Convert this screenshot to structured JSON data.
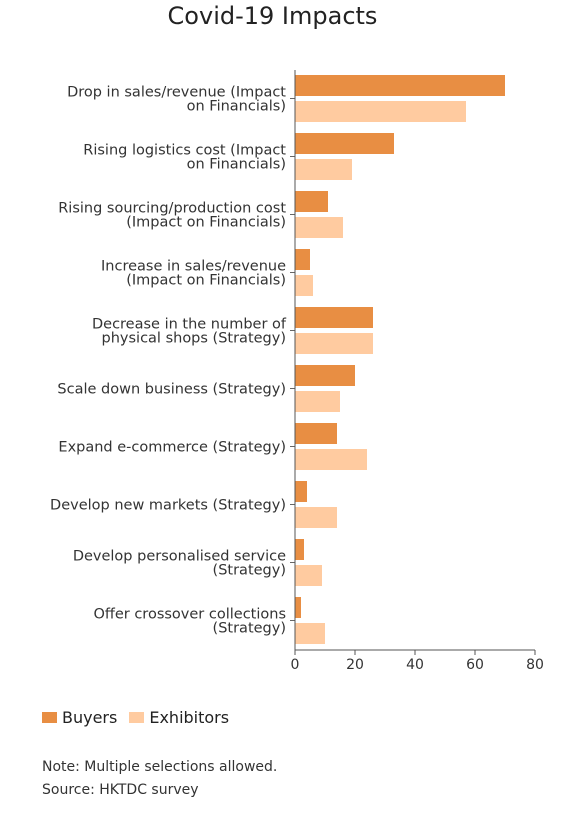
{
  "chart_data": {
    "type": "bar",
    "orientation": "horizontal",
    "title": "Covid-19 Impacts",
    "categories": [
      [
        "Drop in sales/revenue (Impact",
        "on Financials)"
      ],
      [
        "Rising logistics cost (Impact",
        "on Financials)"
      ],
      [
        "Rising sourcing/production cost",
        "(Impact on Financials)"
      ],
      [
        "Increase in sales/revenue",
        "(Impact on Financials)"
      ],
      [
        "Decrease in the number of",
        "physical shops (Strategy)"
      ],
      [
        "Scale down business (Strategy)"
      ],
      [
        "Expand e-commerce (Strategy)"
      ],
      [
        "Develop new markets (Strategy)"
      ],
      [
        "Develop personalised service",
        "(Strategy)"
      ],
      [
        "Offer crossover collections",
        "(Strategy)"
      ]
    ],
    "series": [
      {
        "name": "Buyers",
        "color": "#E88E43",
        "values": [
          70,
          33,
          11,
          5,
          26,
          20,
          14,
          4,
          3,
          2
        ]
      },
      {
        "name": "Exhibitors",
        "color": "#FFCBA0",
        "values": [
          57,
          19,
          16,
          6,
          26,
          15,
          24,
          14,
          9,
          10
        ]
      }
    ],
    "xlim": [
      0,
      80
    ],
    "xticks": [
      "0",
      "20",
      "40",
      "60",
      "80"
    ],
    "grid": false,
    "legend_position": "bottom-left"
  },
  "notes": {
    "note": "Note: Multiple selections allowed.",
    "source": "Source: HKTDC survey"
  }
}
